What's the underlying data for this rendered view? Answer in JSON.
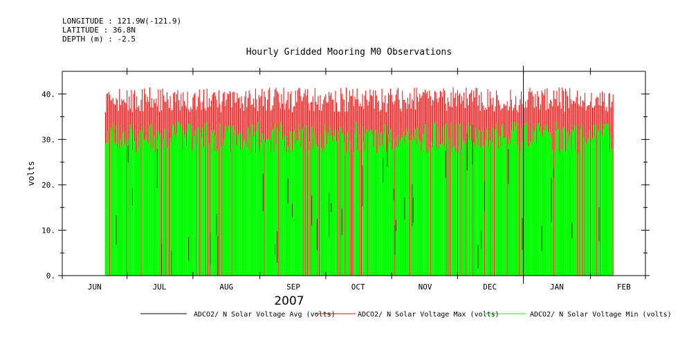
{
  "header": {
    "longitude": "LONGITUDE : 121.9W(-121.9)",
    "latitude": "LATITUDE : 36.8N",
    "depth": "DEPTH (m) : -2.5"
  },
  "chart_data": {
    "type": "bar",
    "title": "Hourly Gridded Mooring M0 Observations",
    "ylabel": "volts",
    "xlabel": "2007",
    "ylim": [
      0,
      45
    ],
    "yticks": [
      0,
      10,
      20,
      30,
      40
    ],
    "yticklabels": [
      "0.",
      "10.",
      "20.",
      "30.",
      "40."
    ],
    "xlim_days": [
      -15,
      255
    ],
    "month_ticks": [
      {
        "label": "JUN",
        "day": 0
      },
      {
        "label": "JUL",
        "day": 30
      },
      {
        "label": "AUG",
        "day": 61
      },
      {
        "label": "SEP",
        "day": 92
      },
      {
        "label": "OCT",
        "day": 122
      },
      {
        "label": "NOV",
        "day": 153
      },
      {
        "label": "DEC",
        "day": 183
      },
      {
        "label": "JAN",
        "day": 214
      },
      {
        "label": "FEB",
        "day": 245
      }
    ],
    "data_range_days": [
      5,
      240
    ],
    "series": [
      {
        "name": "ADCO2/ N Solar Voltage Avg (volts)",
        "color": "#000000",
        "typical_min": 0,
        "typical_max": 35
      },
      {
        "name": "ADCO2/ N Solar Voltage Max (volts)",
        "color": "#ff0000",
        "typical_min": 0,
        "typical_max": 40
      },
      {
        "name": "ADCO2/ N Solar Voltage Min (volts)",
        "color": "#00ff00",
        "typical_min": 0,
        "typical_max": 35
      }
    ]
  }
}
